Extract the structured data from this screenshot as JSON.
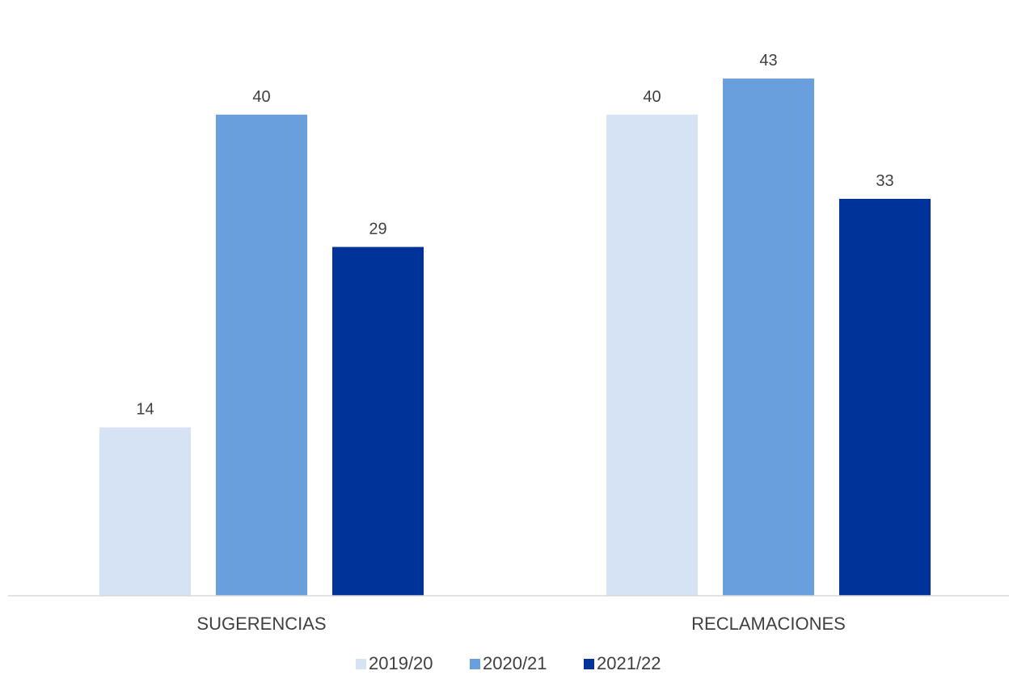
{
  "chart_data": {
    "type": "bar",
    "title": "",
    "xlabel": "",
    "ylabel": "",
    "categories": [
      "SUGERENCIAS",
      "RECLAMACIONES"
    ],
    "series": [
      {
        "name": "2019/20",
        "values": [
          14,
          40
        ],
        "color": "#d6e3f4"
      },
      {
        "name": "2020/21",
        "values": [
          40,
          43
        ],
        "color": "#6a9fde"
      },
      {
        "name": "2021/22",
        "values": [
          29,
          33
        ],
        "color": "#00339a"
      }
    ],
    "ylim": [
      0,
      45
    ],
    "data_labels": true,
    "grid": false,
    "legend": "bottom-center"
  }
}
